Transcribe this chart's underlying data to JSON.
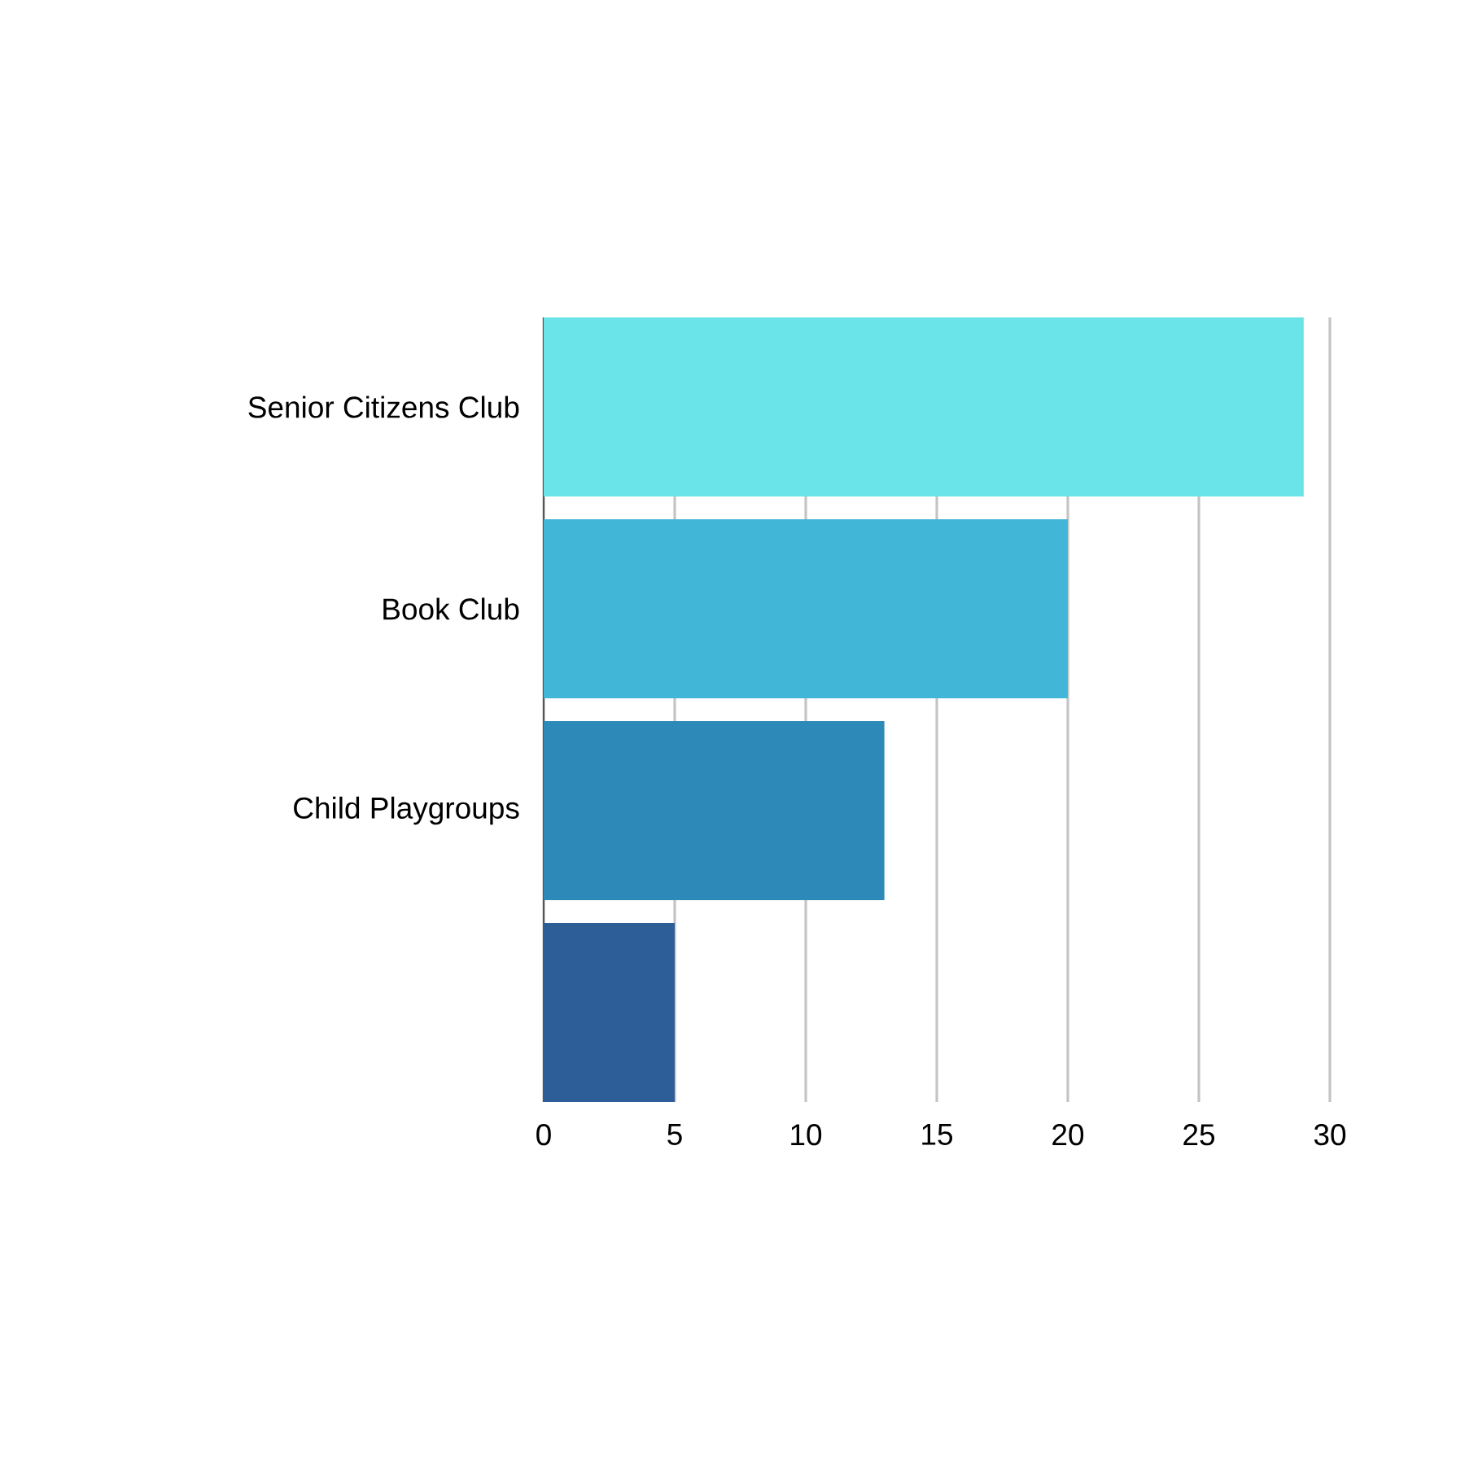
{
  "chart_data": {
    "type": "bar",
    "orientation": "horizontal",
    "categories": [
      "Senior Citizens Club",
      "Book Club",
      "Child Playgroups",
      null
    ],
    "values": [
      29,
      20,
      13,
      5
    ],
    "colors": [
      "#6ae4e8",
      "#42b6d6",
      "#2d8ab8",
      "#2e5e97"
    ],
    "xlim": [
      0,
      30
    ],
    "xticks": [
      0,
      5,
      10,
      15,
      20,
      25,
      30
    ],
    "grid": "x"
  }
}
